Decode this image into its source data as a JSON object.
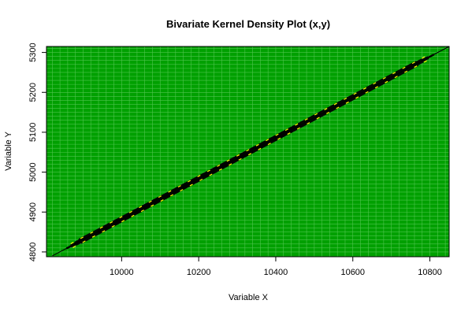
{
  "chart_data": {
    "type": "contour",
    "title": "Bivariate Kernel Density Plot (x,y)",
    "xlabel": "Variable X",
    "ylabel": "Variable Y",
    "xlim": [
      9805,
      10850
    ],
    "ylim": [
      4788,
      5315
    ],
    "x_ticks": [
      10000,
      10200,
      10400,
      10600,
      10800
    ],
    "y_ticks": [
      4800,
      4900,
      5000,
      5100,
      5200,
      5300
    ],
    "grid": true,
    "colors": {
      "background": "#00a000",
      "grid": "#4fc44f",
      "contour": "#000000",
      "contour_label": "#ffff00",
      "diagonal": "#000000"
    },
    "density_ridge": {
      "x": [
        9820,
        10850
      ],
      "y": [
        4790,
        5315
      ]
    }
  }
}
